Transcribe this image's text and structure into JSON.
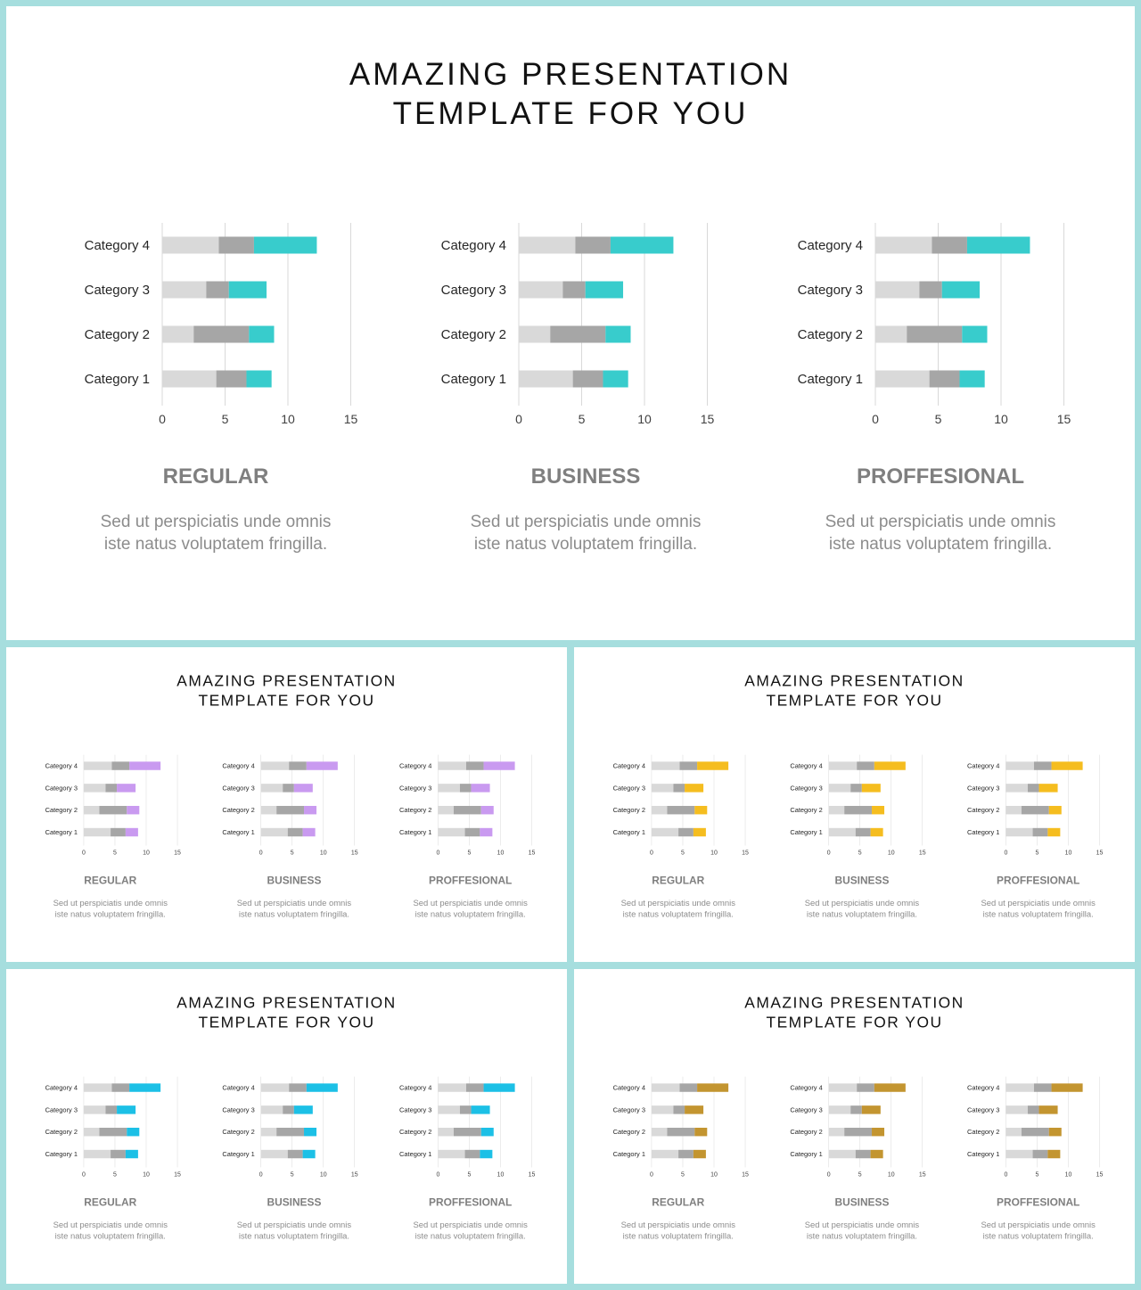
{
  "slides": [
    {
      "title_line1": "AMAZING PRESENTATION",
      "title_line2": "TEMPLATE FOR YOU",
      "accent": "#38cccc"
    },
    {
      "title_line1": "AMAZING PRESENTATION",
      "title_line2": "TEMPLATE FOR YOU",
      "accent": "#c99af0"
    },
    {
      "title_line1": "AMAZING PRESENTATION",
      "title_line2": "TEMPLATE FOR YOU",
      "accent": "#f5bd1f"
    },
    {
      "title_line1": "AMAZING PRESENTATION",
      "title_line2": "TEMPLATE FOR YOU",
      "accent": "#1cc0e6"
    },
    {
      "title_line1": "AMAZING PRESENTATION",
      "title_line2": "TEMPLATE FOR YOU",
      "accent": "#c39530"
    }
  ],
  "columns": [
    {
      "heading": "REGULAR",
      "desc_line1": "Sed ut perspiciatis unde omnis",
      "desc_line2": "iste natus voluptatem fringilla."
    },
    {
      "heading": "BUSINESS",
      "desc_line1": "Sed ut perspiciatis unde omnis",
      "desc_line2": "iste natus voluptatem fringilla."
    },
    {
      "heading": "PROFFESIONAL",
      "desc_line1": "Sed ut perspiciatis unde omnis",
      "desc_line2": "iste natus voluptatem fringilla."
    }
  ],
  "colors": {
    "series1": "#d9d9d9",
    "series2": "#a6a6a6",
    "grid": "#d9d9d9",
    "heading": "#7f7f7f",
    "desc": "#8c8c8c",
    "title": "#111111",
    "frame": "#a6dede"
  },
  "chart_data": {
    "type": "bar",
    "orientation": "horizontal",
    "stacked": true,
    "categories": [
      "Category 1",
      "Category 2",
      "Category 3",
      "Category 4"
    ],
    "series": [
      {
        "values": [
          4.3,
          2.5,
          3.5,
          4.5
        ]
      },
      {
        "values": [
          2.4,
          4.4,
          1.8,
          2.8
        ]
      },
      {
        "values": [
          2.0,
          2.0,
          3.0,
          5.0
        ]
      }
    ],
    "xlim": [
      0,
      15
    ],
    "xticks": [
      0,
      5,
      10,
      15
    ],
    "grid": true,
    "legend": "none"
  }
}
